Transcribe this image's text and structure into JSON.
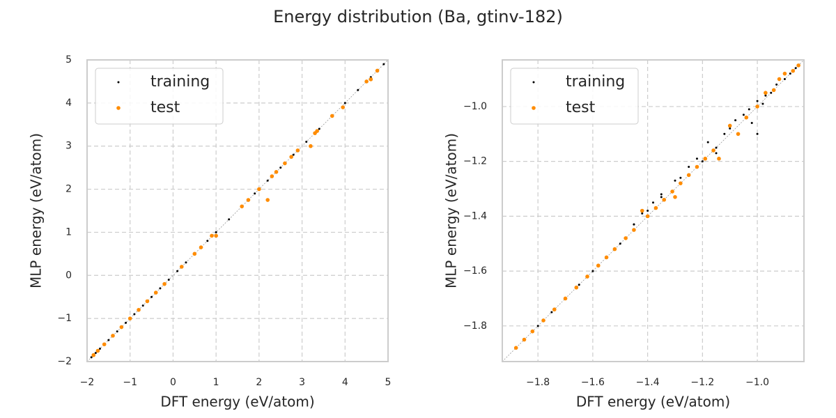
{
  "title": "Energy distribution (Ba, gtinv-182)",
  "chart_data": [
    {
      "type": "scatter",
      "xlabel": "DFT energy (eV/atom)",
      "ylabel": "MLP energy (eV/atom)",
      "xlim": [
        -2,
        5
      ],
      "ylim": [
        -2,
        5
      ],
      "xticks": [
        {
          "value": -2,
          "label": "−2"
        },
        {
          "value": -1,
          "label": "−1"
        },
        0,
        1,
        2,
        3,
        4,
        5
      ],
      "yticks": [
        {
          "value": -2,
          "label": "−2"
        },
        {
          "value": -1,
          "label": "−1"
        },
        0,
        1,
        2,
        3,
        4,
        5
      ],
      "grid": true,
      "legend": "upper left",
      "series": [
        {
          "name": "training",
          "color": "#000000",
          "x": [
            -1.9,
            -1.8,
            -1.7,
            -1.5,
            -1.3,
            -1.1,
            -0.9,
            -0.7,
            -0.5,
            -0.3,
            -0.1,
            0.1,
            0.3,
            0.5,
            0.8,
            1.0,
            1.3,
            1.6,
            1.9,
            2.2,
            2.5,
            2.8,
            3.1,
            3.4,
            3.7,
            4.0,
            4.3,
            4.6,
            4.9
          ],
          "values": [
            -1.9,
            -1.8,
            -1.7,
            -1.5,
            -1.3,
            -1.1,
            -0.9,
            -0.7,
            -0.5,
            -0.3,
            -0.1,
            0.1,
            0.3,
            0.5,
            0.8,
            1.0,
            1.3,
            1.6,
            1.9,
            2.2,
            2.5,
            2.8,
            3.1,
            3.4,
            3.7,
            4.0,
            4.3,
            4.6,
            4.9
          ]
        },
        {
          "name": "test",
          "color": "#ff8c00",
          "x": [
            -1.85,
            -1.75,
            -1.6,
            -1.4,
            -1.2,
            -1.0,
            -0.8,
            -0.6,
            -0.4,
            -0.2,
            0.2,
            0.5,
            0.65,
            0.9,
            1.0,
            1.6,
            1.75,
            2.0,
            2.2,
            2.3,
            2.4,
            2.6,
            2.75,
            2.9,
            3.2,
            3.3,
            3.35,
            3.7,
            3.95,
            4.5,
            4.6,
            4.75
          ],
          "values": [
            -1.85,
            -1.75,
            -1.6,
            -1.4,
            -1.2,
            -1.0,
            -0.8,
            -0.6,
            -0.4,
            -0.2,
            0.2,
            0.5,
            0.65,
            0.92,
            0.92,
            1.6,
            1.75,
            2.0,
            1.75,
            2.3,
            2.4,
            2.6,
            2.75,
            2.9,
            3.0,
            3.3,
            3.35,
            3.7,
            3.9,
            4.5,
            4.55,
            4.75
          ]
        }
      ]
    },
    {
      "type": "scatter",
      "xlabel": "DFT energy (eV/atom)",
      "ylabel": "MLP energy (eV/atom)",
      "xlim": [
        -1.93,
        -0.83
      ],
      "ylim": [
        -1.93,
        -0.83
      ],
      "xticks": [
        {
          "value": -1.8,
          "label": "−1.8"
        },
        {
          "value": -1.6,
          "label": "−1.6"
        },
        {
          "value": -1.4,
          "label": "−1.4"
        },
        {
          "value": -1.2,
          "label": "−1.2"
        },
        {
          "value": -1.0,
          "label": "−1.0"
        }
      ],
      "yticks": [
        {
          "value": -1.8,
          "label": "−1.8"
        },
        {
          "value": -1.6,
          "label": "−1.6"
        },
        {
          "value": -1.4,
          "label": "−1.4"
        },
        {
          "value": -1.2,
          "label": "−1.2"
        },
        {
          "value": -1.0,
          "label": "−1.0"
        }
      ],
      "grid": true,
      "legend": "upper left",
      "series": [
        {
          "name": "training",
          "color": "#000000",
          "x": [
            -1.85,
            -1.8,
            -1.75,
            -1.7,
            -1.65,
            -1.6,
            -1.55,
            -1.5,
            -1.45,
            -1.42,
            -1.4,
            -1.38,
            -1.35,
            -1.3,
            -1.28,
            -1.25,
            -1.22,
            -1.2,
            -1.18,
            -1.15,
            -1.12,
            -1.1,
            -1.08,
            -1.05,
            -1.03,
            -1.0,
            -0.98,
            -0.97,
            -0.95,
            -0.93,
            -0.9,
            -0.88,
            -0.86,
            -1.02,
            -1.0,
            -1.15,
            -1.35,
            -1.45
          ],
          "values": [
            -1.85,
            -1.8,
            -1.75,
            -1.7,
            -1.65,
            -1.6,
            -1.55,
            -1.5,
            -1.43,
            -1.39,
            -1.38,
            -1.35,
            -1.33,
            -1.27,
            -1.26,
            -1.22,
            -1.19,
            -1.2,
            -1.13,
            -1.17,
            -1.1,
            -1.08,
            -1.05,
            -1.03,
            -1.01,
            -0.98,
            -0.99,
            -0.96,
            -0.95,
            -0.92,
            -0.9,
            -0.88,
            -0.86,
            -1.06,
            -1.1,
            -1.15,
            -1.32,
            -1.43
          ]
        },
        {
          "name": "test",
          "color": "#ff8c00",
          "x": [
            -1.88,
            -1.85,
            -1.82,
            -1.78,
            -1.74,
            -1.7,
            -1.66,
            -1.62,
            -1.58,
            -1.55,
            -1.52,
            -1.48,
            -1.45,
            -1.42,
            -1.4,
            -1.37,
            -1.34,
            -1.31,
            -1.3,
            -1.28,
            -1.25,
            -1.22,
            -1.19,
            -1.16,
            -1.14,
            -1.1,
            -1.07,
            -1.04,
            -1.0,
            -0.97,
            -0.94,
            -0.92,
            -0.9,
            -0.87,
            -0.85
          ],
          "values": [
            -1.88,
            -1.85,
            -1.82,
            -1.78,
            -1.74,
            -1.7,
            -1.66,
            -1.62,
            -1.58,
            -1.55,
            -1.52,
            -1.48,
            -1.45,
            -1.38,
            -1.4,
            -1.37,
            -1.34,
            -1.31,
            -1.33,
            -1.28,
            -1.25,
            -1.22,
            -1.19,
            -1.16,
            -1.19,
            -1.07,
            -1.1,
            -1.04,
            -1.0,
            -0.95,
            -0.94,
            -0.9,
            -0.88,
            -0.87,
            -0.85
          ]
        }
      ]
    }
  ]
}
